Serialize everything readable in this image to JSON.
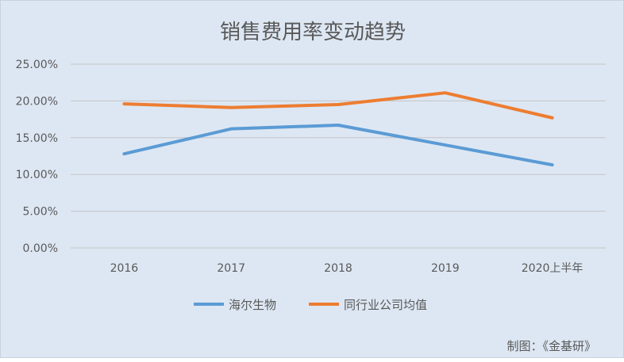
{
  "chart_data": {
    "type": "line",
    "title": "销售费用率变动趋势",
    "categories": [
      "2016",
      "2017",
      "2018",
      "2019",
      "2020上半年"
    ],
    "series": [
      {
        "name": "海尔生物",
        "color": "#5b9bd5",
        "values": [
          12.8,
          16.2,
          16.7,
          14.0,
          11.3
        ]
      },
      {
        "name": "同行业公司均值",
        "color": "#ed7d31",
        "values": [
          19.6,
          19.1,
          19.5,
          21.1,
          17.7
        ]
      }
    ],
    "yticks": [
      "0.00%",
      "5.00%",
      "10.00%",
      "15.00%",
      "20.00%",
      "25.00%"
    ],
    "ylim": [
      0,
      25
    ],
    "grid": true,
    "legend": "bottom",
    "xlabel": "",
    "ylabel": ""
  },
  "credit": "制图：《金基研》"
}
